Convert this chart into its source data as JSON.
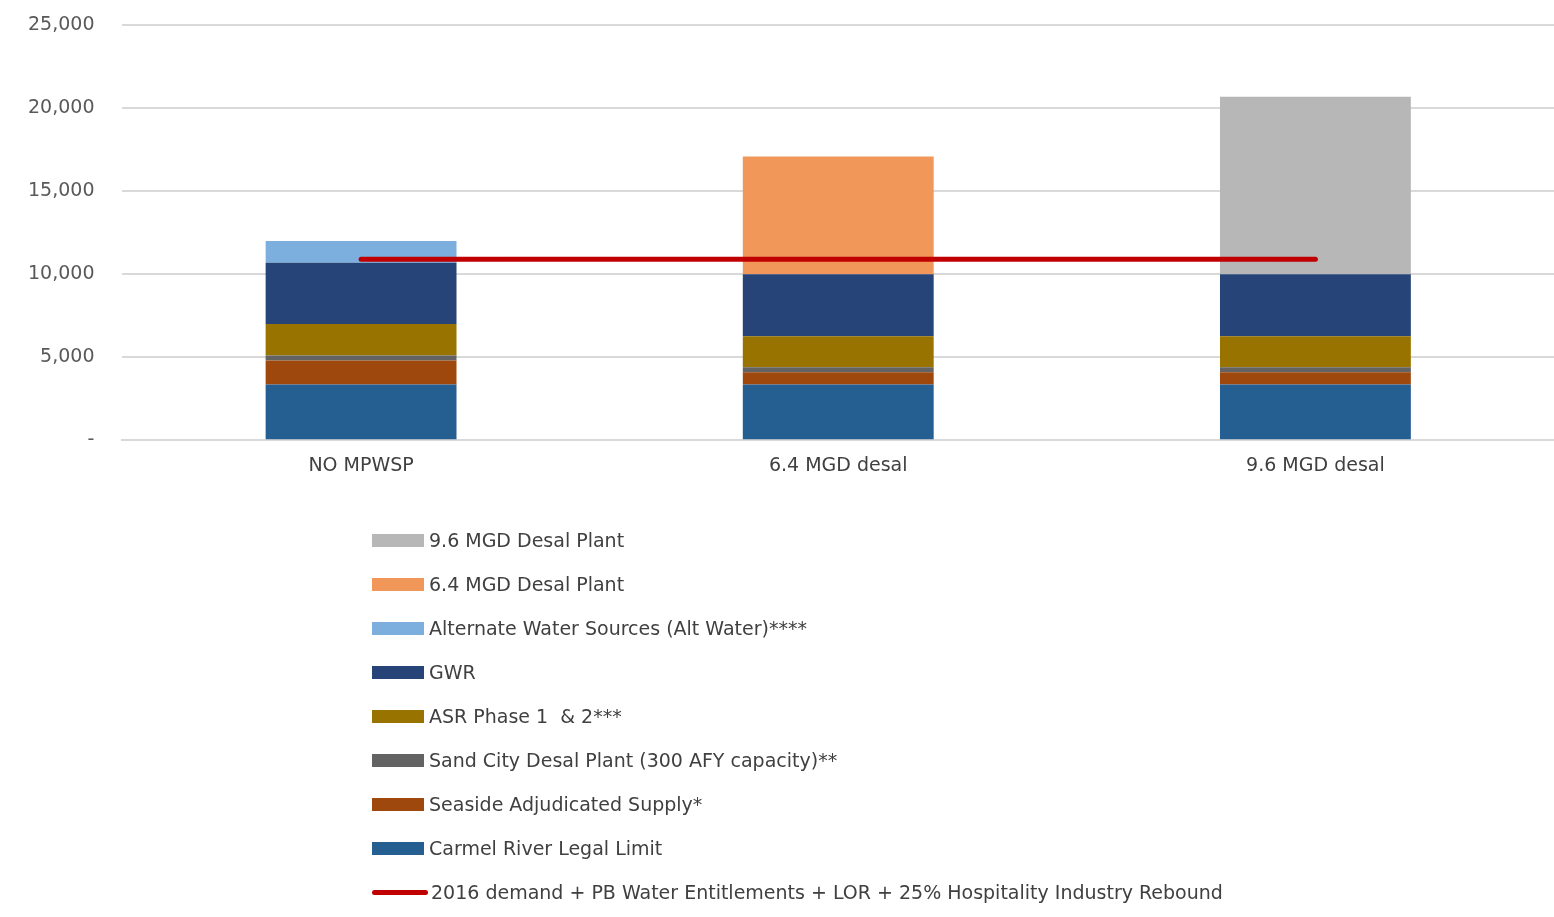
{
  "chart_data": {
    "type": "bar",
    "stacked": true,
    "categories": [
      "NO MPWSP",
      "6.4 MGD desal",
      "9.6 MGD desal"
    ],
    "series": [
      {
        "name": "Carmel River Legal Limit",
        "color": "#255e91",
        "values": [
          3350,
          3350,
          3350
        ]
      },
      {
        "name": "Seaside Adjudicated Supply*",
        "color": "#9e480e",
        "values": [
          1450,
          750,
          750
        ]
      },
      {
        "name": "Sand City Desal Plant (300 AFY capacity)**",
        "color": "#636363",
        "values": [
          300,
          300,
          300
        ]
      },
      {
        "name": "ASR Phase 1  & 2***",
        "color": "#997300",
        "values": [
          1900,
          1860,
          1860
        ]
      },
      {
        "name": "GWR",
        "color": "#264478",
        "values": [
          3700,
          3740,
          3740
        ]
      },
      {
        "name": "Alternate Water Sources (Alt Water)****",
        "color": "#7cafdd",
        "values": [
          1300,
          null,
          null
        ]
      },
      {
        "name": "6.4 MGD Desal Plant",
        "color": "#f1975a",
        "values": [
          null,
          7100,
          null
        ]
      },
      {
        "name": "9.6 MGD Desal Plant",
        "color": "#b7b7b7",
        "values": [
          null,
          null,
          10700
        ]
      },
      {
        "name": "2016 demand + PB Water Entitlements + LOR + 25% Hospitality Industry Rebound",
        "type": "line",
        "color": "#c00000",
        "values": [
          10900,
          10900,
          10900
        ]
      }
    ],
    "ylim": [
      0,
      25000
    ],
    "yticks": [
      {
        "value": 0,
        "label": "-"
      },
      {
        "value": 5000,
        "label": "5,000"
      },
      {
        "value": 10000,
        "label": "10,000"
      },
      {
        "value": 15000,
        "label": "15,000"
      },
      {
        "value": 20000,
        "label": "20,000"
      },
      {
        "value": 25000,
        "label": "25,000"
      }
    ],
    "grid": "y",
    "legend": "bottom",
    "marker": "none"
  }
}
